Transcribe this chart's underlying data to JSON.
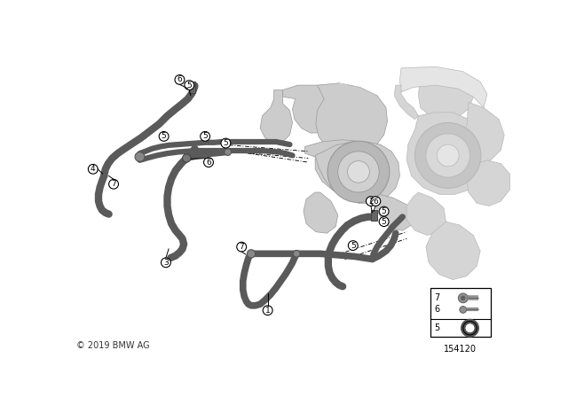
{
  "bg_color": "#ffffff",
  "copyright": "© 2019 BMW AG",
  "part_number": "154120",
  "figure_size": [
    6.4,
    4.48
  ],
  "dpi": 100,
  "hose_color": "#5a5a5a",
  "turbo_fill_dark": "#b8b8b8",
  "turbo_fill_mid": "#cccccc",
  "turbo_fill_light": "#dedede",
  "turbo_edge": "#999999",
  "label_color": "#000000",
  "leader_color": "#000000"
}
